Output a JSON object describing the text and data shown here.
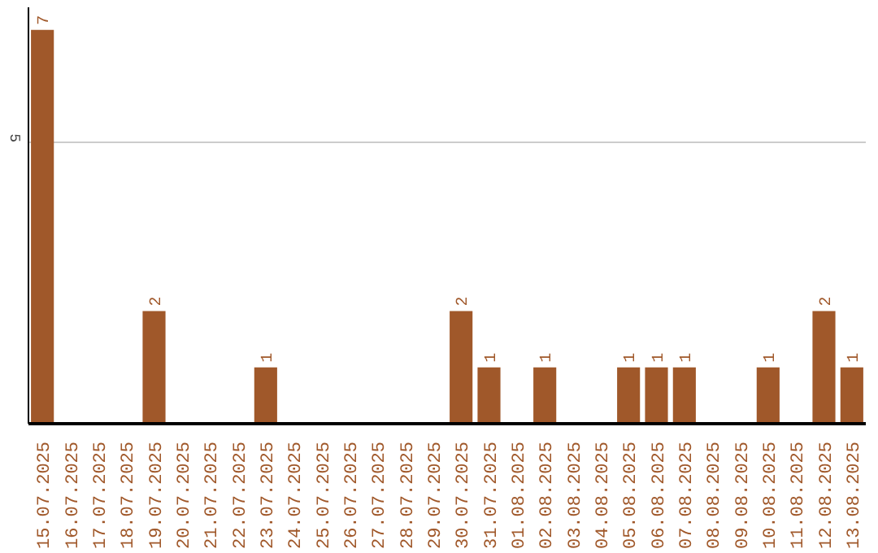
{
  "chart_data": {
    "type": "bar",
    "categories": [
      "15.07.2025",
      "16.07.2025",
      "17.07.2025",
      "18.07.2025",
      "19.07.2025",
      "20.07.2025",
      "21.07.2025",
      "22.07.2025",
      "23.07.2025",
      "24.07.2025",
      "25.07.2025",
      "26.07.2025",
      "27.07.2025",
      "28.07.2025",
      "29.07.2025",
      "30.07.2025",
      "31.07.2025",
      "01.08.2025",
      "02.08.2025",
      "03.08.2025",
      "04.08.2025",
      "05.08.2025",
      "06.08.2025",
      "07.08.2025",
      "08.08.2025",
      "09.08.2025",
      "10.08.2025",
      "11.08.2025",
      "12.08.2025",
      "13.08.2025"
    ],
    "values": [
      7,
      0,
      0,
      0,
      2,
      0,
      0,
      0,
      1,
      0,
      0,
      0,
      0,
      0,
      0,
      2,
      1,
      0,
      1,
      0,
      0,
      1,
      1,
      1,
      0,
      0,
      1,
      0,
      2,
      1
    ],
    "value_labels": [
      "7",
      null,
      null,
      null,
      "2",
      null,
      null,
      null,
      "1",
      null,
      null,
      null,
      null,
      null,
      null,
      "2",
      "1",
      null,
      "1",
      null,
      null,
      "1",
      "1",
      "1",
      null,
      null,
      "1",
      null,
      "2",
      "1"
    ],
    "color": "#a0582a",
    "ylim": [
      0,
      7.4
    ],
    "yticks": [
      5
    ],
    "grid": "y"
  }
}
